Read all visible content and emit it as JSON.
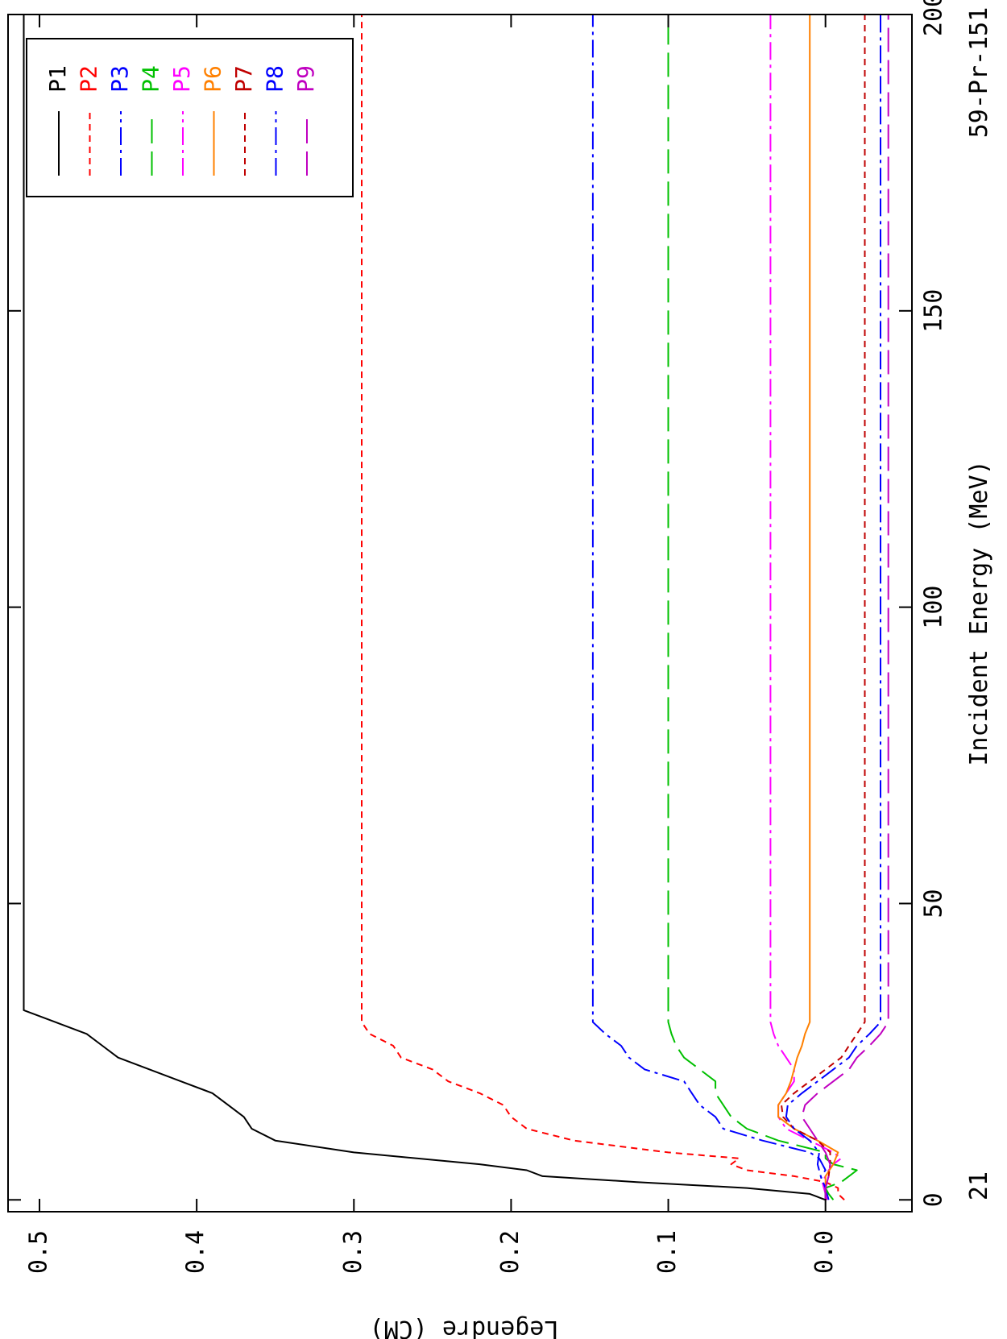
{
  "chart_data": {
    "type": "line",
    "title": "",
    "xlabel": "Incident Energy (MeV)",
    "ylabel": "Legendre (CM)",
    "corner_left": "21",
    "corner_right": "59-Pr-151",
    "xlim": [
      -2,
      200
    ],
    "ylim": [
      -0.055,
      0.52
    ],
    "x_ticks": [
      0,
      50,
      100,
      150,
      200
    ],
    "y_ticks": [
      0.5,
      0.4,
      0.3,
      0.2,
      0.1,
      0.0
    ],
    "x_tick_labels": [
      "0",
      "50",
      "100",
      "150",
      "200"
    ],
    "y_tick_labels": [
      "0.5",
      "0.4",
      "0.3",
      "0.2",
      "0.1",
      "0.0"
    ],
    "grid": false,
    "legend_position": "top-left",
    "orientation": "rotated-90-clockwise",
    "series": [
      {
        "name": "P1",
        "color": "#000000",
        "dash": "solid",
        "points": [
          [
            0,
            0.0
          ],
          [
            0.5,
            0.005
          ],
          [
            1,
            0.01
          ],
          [
            2,
            0.05
          ],
          [
            3,
            0.12
          ],
          [
            4,
            0.18
          ],
          [
            5,
            0.19
          ],
          [
            6,
            0.22
          ],
          [
            8,
            0.3
          ],
          [
            10,
            0.35
          ],
          [
            12,
            0.365
          ],
          [
            14,
            0.37
          ],
          [
            16,
            0.38
          ],
          [
            18,
            0.39
          ],
          [
            20,
            0.41
          ],
          [
            22,
            0.43
          ],
          [
            24,
            0.45
          ],
          [
            26,
            0.46
          ],
          [
            28,
            0.47
          ],
          [
            30,
            0.49
          ],
          [
            32,
            0.51
          ],
          [
            200,
            0.51
          ]
        ]
      },
      {
        "name": "P2",
        "color": "#ff0000",
        "dash": "short-dash",
        "points": [
          [
            0,
            -0.012
          ],
          [
            0.5,
            -0.01
          ],
          [
            1,
            -0.008
          ],
          [
            2,
            -0.008
          ],
          [
            3,
            0.0
          ],
          [
            4,
            0.02
          ],
          [
            5,
            0.05
          ],
          [
            6,
            0.06
          ],
          [
            7,
            0.055
          ],
          [
            8,
            0.1
          ],
          [
            10,
            0.16
          ],
          [
            12,
            0.19
          ],
          [
            14,
            0.2
          ],
          [
            16,
            0.205
          ],
          [
            18,
            0.22
          ],
          [
            20,
            0.24
          ],
          [
            22,
            0.25
          ],
          [
            24,
            0.27
          ],
          [
            26,
            0.275
          ],
          [
            28,
            0.29
          ],
          [
            30,
            0.295
          ],
          [
            200,
            0.295
          ]
        ]
      },
      {
        "name": "P3",
        "color": "#0000ff",
        "dash": "dash-dot",
        "points": [
          [
            0,
            -0.002
          ],
          [
            1,
            -0.001
          ],
          [
            2,
            0.0
          ],
          [
            3,
            0.002
          ],
          [
            4,
            0.003
          ],
          [
            5,
            0.0
          ],
          [
            6,
            0.002
          ],
          [
            7,
            0.004
          ],
          [
            8,
            0.01
          ],
          [
            10,
            0.04
          ],
          [
            12,
            0.065
          ],
          [
            14,
            0.07
          ],
          [
            16,
            0.08
          ],
          [
            18,
            0.085
          ],
          [
            20,
            0.09
          ],
          [
            22,
            0.115
          ],
          [
            24,
            0.125
          ],
          [
            26,
            0.13
          ],
          [
            28,
            0.14
          ],
          [
            30,
            0.148
          ],
          [
            200,
            0.148
          ]
        ]
      },
      {
        "name": "P4",
        "color": "#00c000",
        "dash": "long-dash",
        "points": [
          [
            0,
            -0.005
          ],
          [
            1,
            -0.002
          ],
          [
            2,
            0.0
          ],
          [
            3,
            -0.01
          ],
          [
            4,
            -0.015
          ],
          [
            5,
            -0.02
          ],
          [
            6,
            -0.005
          ],
          [
            7,
            0.0
          ],
          [
            8,
            0.0
          ],
          [
            10,
            0.03
          ],
          [
            12,
            0.05
          ],
          [
            14,
            0.06
          ],
          [
            16,
            0.065
          ],
          [
            18,
            0.07
          ],
          [
            20,
            0.07
          ],
          [
            22,
            0.08
          ],
          [
            24,
            0.09
          ],
          [
            26,
            0.095
          ],
          [
            28,
            0.098
          ],
          [
            30,
            0.1
          ],
          [
            200,
            0.1
          ]
        ]
      },
      {
        "name": "P5",
        "color": "#ff00ff",
        "dash": "dash-dot",
        "points": [
          [
            0,
            -0.001
          ],
          [
            1,
            0.0
          ],
          [
            2,
            0.001
          ],
          [
            3,
            0.002
          ],
          [
            4,
            0.0
          ],
          [
            5,
            -0.002
          ],
          [
            6,
            -0.005
          ],
          [
            7,
            -0.01
          ],
          [
            8,
            -0.005
          ],
          [
            10,
            0.01
          ],
          [
            12,
            0.025
          ],
          [
            14,
            0.03
          ],
          [
            16,
            0.03
          ],
          [
            18,
            0.025
          ],
          [
            20,
            0.02
          ],
          [
            22,
            0.02
          ],
          [
            24,
            0.025
          ],
          [
            26,
            0.03
          ],
          [
            28,
            0.033
          ],
          [
            30,
            0.035
          ],
          [
            200,
            0.035
          ]
        ]
      },
      {
        "name": "P6",
        "color": "#ff8000",
        "dash": "solid",
        "points": [
          [
            0,
            0.0
          ],
          [
            2,
            0.0
          ],
          [
            4,
            0.0
          ],
          [
            6,
            -0.005
          ],
          [
            8,
            -0.008
          ],
          [
            10,
            0.005
          ],
          [
            12,
            0.02
          ],
          [
            14,
            0.03
          ],
          [
            16,
            0.03
          ],
          [
            18,
            0.025
          ],
          [
            20,
            0.022
          ],
          [
            22,
            0.02
          ],
          [
            24,
            0.018
          ],
          [
            26,
            0.015
          ],
          [
            28,
            0.013
          ],
          [
            30,
            0.01
          ],
          [
            200,
            0.01
          ]
        ]
      },
      {
        "name": "P7",
        "color": "#c00000",
        "dash": "short-dash",
        "points": [
          [
            0,
            0.0
          ],
          [
            2,
            0.0
          ],
          [
            4,
            -0.002
          ],
          [
            6,
            -0.003
          ],
          [
            8,
            -0.003
          ],
          [
            10,
            0.005
          ],
          [
            12,
            0.02
          ],
          [
            14,
            0.027
          ],
          [
            16,
            0.028
          ],
          [
            18,
            0.02
          ],
          [
            20,
            0.01
          ],
          [
            22,
            0.0
          ],
          [
            24,
            -0.01
          ],
          [
            26,
            -0.015
          ],
          [
            28,
            -0.02
          ],
          [
            30,
            -0.025
          ],
          [
            200,
            -0.025
          ]
        ]
      },
      {
        "name": "P8",
        "color": "#0000ff",
        "dash": "dash-dot",
        "points": [
          [
            0,
            0.0
          ],
          [
            2,
            0.0
          ],
          [
            4,
            0.003
          ],
          [
            6,
            0.005
          ],
          [
            8,
            0.004
          ],
          [
            10,
            0.01
          ],
          [
            12,
            0.02
          ],
          [
            14,
            0.025
          ],
          [
            16,
            0.024
          ],
          [
            18,
            0.015
          ],
          [
            20,
            0.005
          ],
          [
            22,
            -0.005
          ],
          [
            24,
            -0.015
          ],
          [
            26,
            -0.02
          ],
          [
            28,
            -0.028
          ],
          [
            30,
            -0.035
          ],
          [
            200,
            -0.035
          ]
        ]
      },
      {
        "name": "P9",
        "color": "#c000c0",
        "dash": "long-dash",
        "points": [
          [
            0,
            0.0
          ],
          [
            2,
            0.0
          ],
          [
            4,
            -0.002
          ],
          [
            6,
            -0.003
          ],
          [
            8,
            0.0
          ],
          [
            10,
            0.005
          ],
          [
            12,
            0.01
          ],
          [
            14,
            0.015
          ],
          [
            16,
            0.013
          ],
          [
            18,
            0.005
          ],
          [
            20,
            -0.005
          ],
          [
            22,
            -0.015
          ],
          [
            24,
            -0.02
          ],
          [
            26,
            -0.028
          ],
          [
            28,
            -0.035
          ],
          [
            30,
            -0.04
          ],
          [
            200,
            -0.04
          ]
        ]
      }
    ]
  }
}
